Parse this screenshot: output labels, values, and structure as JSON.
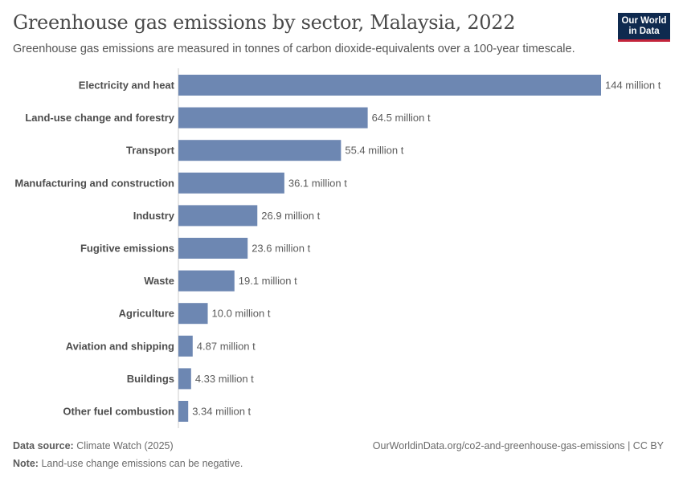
{
  "header": {
    "title": "Greenhouse gas emissions by sector, Malaysia, 2022",
    "subtitle": "Greenhouse gas emissions are measured in tonnes of carbon dioxide-equivalents over a 100-year timescale.",
    "logo_line1": "Our World",
    "logo_line2": "in Data"
  },
  "footer": {
    "source_label": "Data source:",
    "source_value": "Climate Watch (2025)",
    "url": "OurWorldinData.org/co2-and-greenhouse-gas-emissions | CC BY",
    "note_label": "Note:",
    "note_value": "Land-use change emissions can be negative."
  },
  "colors": {
    "bar": "#6d87b2",
    "axis": "#cccccc"
  },
  "chart_data": {
    "type": "bar",
    "orientation": "horizontal",
    "title": "Greenhouse gas emissions by sector, Malaysia, 2022",
    "xlabel": "",
    "ylabel": "",
    "unit": "tonnes CO2-equivalent",
    "xlim": [
      0,
      144000000
    ],
    "categories": [
      "Electricity and heat",
      "Land-use change and forestry",
      "Transport",
      "Manufacturing and construction",
      "Industry",
      "Fugitive emissions",
      "Waste",
      "Agriculture",
      "Aviation and shipping",
      "Buildings",
      "Other fuel combustion"
    ],
    "values": [
      144000000,
      64500000,
      55400000,
      36100000,
      26900000,
      23600000,
      19100000,
      10000000,
      4870000,
      4330000,
      3340000
    ],
    "value_labels": [
      "144 million t",
      "64.5 million t",
      "55.4 million t",
      "36.1 million t",
      "26.9 million t",
      "23.6 million t",
      "19.1 million t",
      "10.0 million t",
      "4.87 million t",
      "4.33 million t",
      "3.34 million t"
    ]
  }
}
